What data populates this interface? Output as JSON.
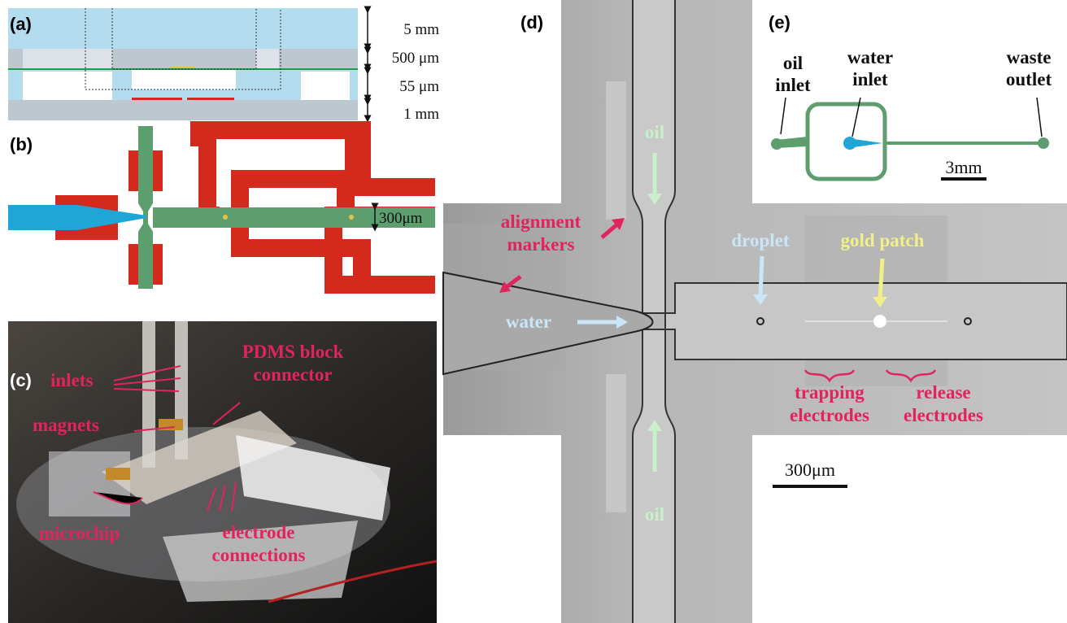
{
  "panels": {
    "a": {
      "label": "(a)",
      "dimensions": [
        "5 mm",
        "500 μm",
        "55 μm",
        "1 mm"
      ]
    },
    "b": {
      "label": "(b)",
      "scale": "300μm"
    },
    "c": {
      "label": "(c)",
      "annotations": {
        "inlets": [
          "inlets"
        ],
        "pdms": [
          "PDMS block",
          "connector"
        ],
        "magnets": [
          "magnets"
        ],
        "microchip": [
          "microchip"
        ],
        "electrodes": [
          "electrode",
          "connections"
        ]
      }
    },
    "d": {
      "label": "(d)",
      "annotations": {
        "oil_top": [
          "oil"
        ],
        "oil_bottom": [
          "oil"
        ],
        "alignment": [
          "alignment",
          "markers"
        ],
        "water": [
          "water"
        ],
        "droplet": [
          "droplet"
        ],
        "gold": [
          "gold patch"
        ],
        "trapping": [
          "trapping",
          "electrodes"
        ],
        "release": [
          "release",
          "electrodes"
        ]
      },
      "scale": "300μm"
    },
    "e": {
      "label": "(e)",
      "annotations": {
        "oil": [
          "oil",
          "inlet"
        ],
        "water": [
          "water",
          "inlet"
        ],
        "waste": [
          "waste",
          "outlet"
        ]
      },
      "scale": "3mm"
    }
  }
}
